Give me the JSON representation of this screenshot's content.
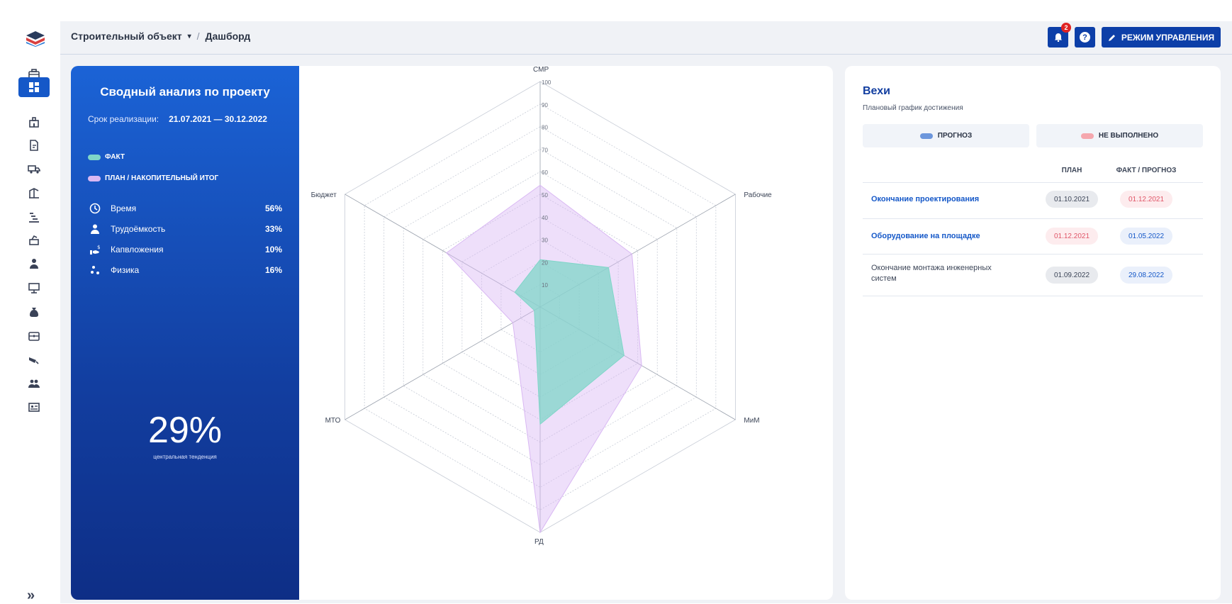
{
  "breadcrumb": {
    "project": "Строительный объект",
    "page": "Дашборд"
  },
  "topbar": {
    "notifications_count": "2",
    "help": "?",
    "mode_button": "РЕЖИМ УПРАВЛЕНИЯ"
  },
  "summary": {
    "title": "Сводный анализ по проекту",
    "period_label": "Срок реализации:",
    "period_value": "21.07.2021 — 30.12.2022",
    "legend": [
      {
        "label": "ФАКТ",
        "color": "#7fd6c8"
      },
      {
        "label": "ПЛАН / НАКОПИТЕЛЬНЫЙ ИТОГ",
        "color": "#d9b8f3"
      }
    ],
    "metrics": [
      {
        "icon": "clock-icon",
        "label": "Время",
        "value": "56%"
      },
      {
        "icon": "worker-icon",
        "label": "Трудоёмкость",
        "value": "33%"
      },
      {
        "icon": "investment-icon",
        "label": "Капвложения",
        "value": "10%"
      },
      {
        "icon": "molecule-icon",
        "label": "Физика",
        "value": "16%"
      }
    ],
    "central_value": "29%",
    "central_caption": "центральная тенденция"
  },
  "chart_data": {
    "type": "radar",
    "axes": [
      "СМР",
      "Рабочие",
      "МиМ",
      "РД",
      "МТО",
      "Бюджет"
    ],
    "ticks": [
      "10",
      "20",
      "30",
      "40",
      "50",
      "60",
      "70",
      "80",
      "90",
      "100"
    ],
    "tick_top_label": "100",
    "range": [
      0,
      100
    ],
    "series": [
      {
        "name": "ПЛАН / НАКОПИТЕЛЬНЫЙ ИТОГ",
        "color": "#d9b8f3",
        "values": [
          54,
          47,
          52,
          100,
          14,
          48
        ]
      },
      {
        "name": "ФАКТ",
        "color": "#7fd6c8",
        "values": [
          21,
          35,
          43,
          52,
          3,
          13
        ]
      }
    ]
  },
  "milestones": {
    "title": "Вехи",
    "subtitle": "Плановый график достижения",
    "legend": [
      {
        "label": "ПРОГНОЗ",
        "color": "#6c96dc"
      },
      {
        "label": "НЕ ВЫПОЛНЕНО",
        "color": "#f5a7ae"
      }
    ],
    "columns": {
      "plan": "ПЛАН",
      "fact": "ФАКТ / ПРОГНОЗ"
    },
    "rows": [
      {
        "name": "Окончание проектирования",
        "plan": "01.10.2021",
        "fact": "01.12.2021",
        "plan_style": "grey",
        "fact_style": "red",
        "is_link": true
      },
      {
        "name": "Оборудование на площадке",
        "plan": "01.12.2021",
        "fact": "01.05.2022",
        "plan_style": "red",
        "fact_style": "blue",
        "is_link": true
      },
      {
        "name": "Окончание монтажа инженерных систем",
        "plan": "01.09.2022",
        "fact": "29.08.2022",
        "plan_style": "grey",
        "fact_style": "blue",
        "is_link": false
      }
    ]
  }
}
